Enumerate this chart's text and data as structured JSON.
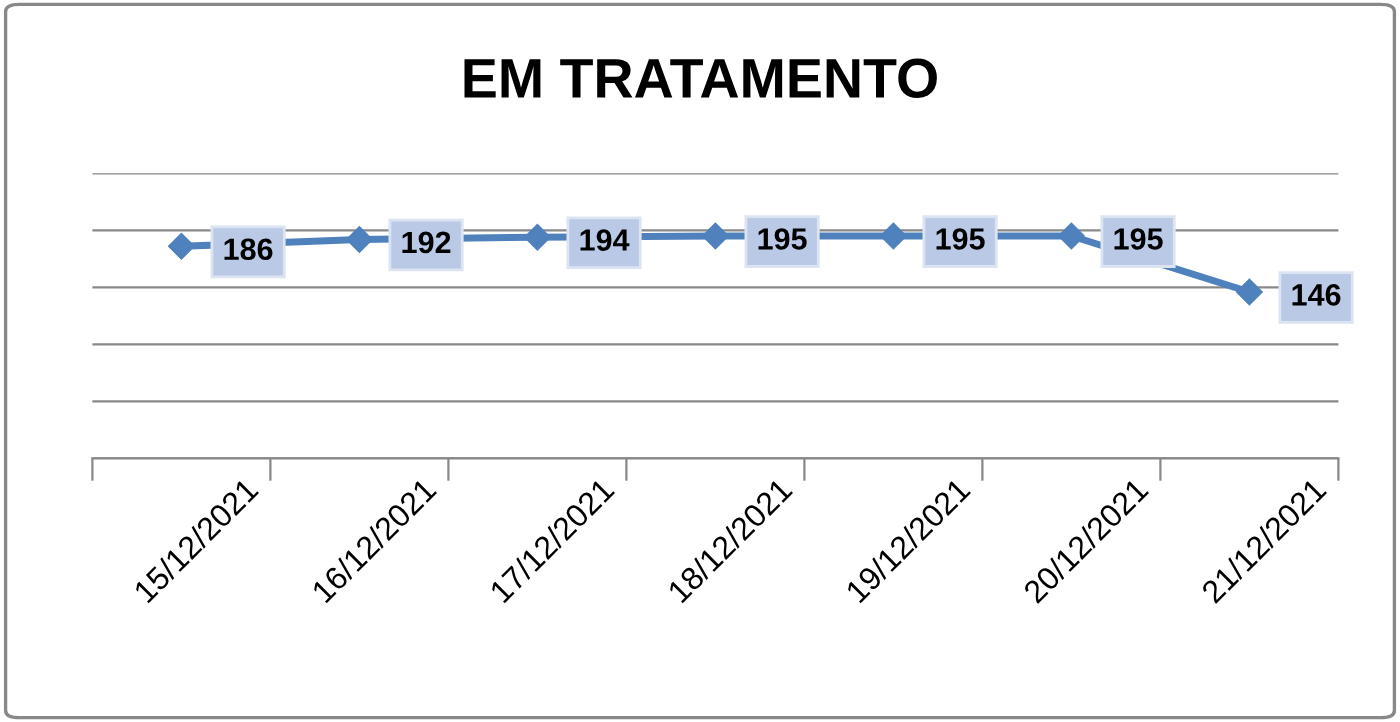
{
  "chart_data": {
    "type": "line",
    "title": "EM TRATAMENTO",
    "categories": [
      "15/12/2021",
      "16/12/2021",
      "17/12/2021",
      "18/12/2021",
      "19/12/2021",
      "20/12/2021",
      "21/12/2021"
    ],
    "series": [
      {
        "color": "#4f81bd",
        "values": [
          186,
          192,
          194,
          195,
          195,
          195,
          146
        ]
      }
    ],
    "ylim": [
      0,
      250
    ],
    "yticks": [
      {
        "value": 0,
        "label": null
      },
      {
        "value": 50,
        "label": null
      },
      {
        "value": 100,
        "label": null
      },
      {
        "value": 150,
        "label": null
      },
      {
        "value": 200,
        "label": null
      },
      {
        "value": 250,
        "label": null
      }
    ],
    "tick_labels": "x",
    "grid": "y",
    "marker": "diamond",
    "line_style": "solid",
    "data_labels": true
  }
}
